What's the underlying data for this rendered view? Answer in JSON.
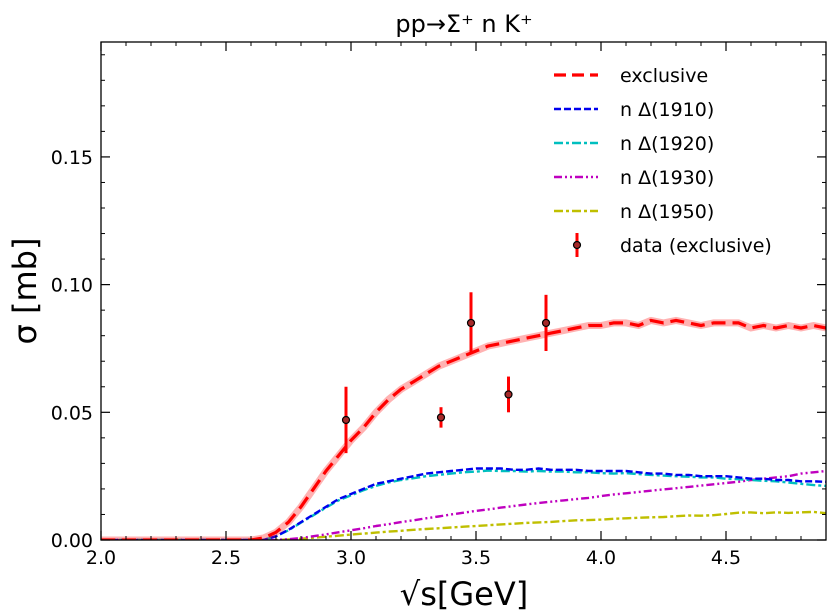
{
  "chart_data": {
    "type": "line",
    "title": "pp→Σ⁺ n K⁺",
    "xlabel": "√s[GeV]",
    "ylabel": "σ [mb]",
    "xlim": [
      2.0,
      4.9
    ],
    "ylim": [
      0.0,
      0.195
    ],
    "x_ticks": [
      2.0,
      2.5,
      3.0,
      3.5,
      4.0,
      4.5
    ],
    "x_tick_labels": [
      "2.0",
      "2.5",
      "3.0",
      "3.5",
      "4.0",
      "4.5"
    ],
    "y_ticks": [
      0.0,
      0.05,
      0.1,
      0.15
    ],
    "y_tick_labels": [
      "0.00",
      "0.05",
      "0.10",
      "0.15"
    ],
    "legend_position": "top-right",
    "series": [
      {
        "name": "exclusive",
        "color": "#ff0000",
        "style": "dashed-thick",
        "x": [
          2.0,
          2.6,
          2.65,
          2.7,
          2.75,
          2.8,
          2.85,
          2.9,
          2.95,
          3.0,
          3.05,
          3.1,
          3.15,
          3.2,
          3.25,
          3.3,
          3.35,
          3.4,
          3.45,
          3.5,
          3.55,
          3.6,
          3.65,
          3.7,
          3.75,
          3.8,
          3.85,
          3.9,
          3.95,
          4.0,
          4.05,
          4.1,
          4.15,
          4.2,
          4.25,
          4.3,
          4.35,
          4.4,
          4.45,
          4.5,
          4.55,
          4.6,
          4.65,
          4.7,
          4.75,
          4.8,
          4.85,
          4.9
        ],
        "y": [
          0.0,
          0.0,
          0.0008,
          0.003,
          0.007,
          0.013,
          0.02,
          0.027,
          0.033,
          0.039,
          0.044,
          0.05,
          0.055,
          0.059,
          0.062,
          0.065,
          0.068,
          0.07,
          0.072,
          0.074,
          0.076,
          0.077,
          0.078,
          0.079,
          0.08,
          0.081,
          0.082,
          0.083,
          0.084,
          0.084,
          0.085,
          0.085,
          0.084,
          0.086,
          0.085,
          0.086,
          0.085,
          0.084,
          0.085,
          0.085,
          0.085,
          0.083,
          0.084,
          0.083,
          0.084,
          0.083,
          0.084,
          0.083
        ]
      },
      {
        "name": "n Δ(1910)",
        "color": "#0000ee",
        "style": "dashed",
        "x": [
          2.0,
          2.65,
          2.7,
          2.75,
          2.8,
          2.85,
          2.9,
          2.95,
          3.0,
          3.05,
          3.1,
          3.15,
          3.2,
          3.25,
          3.3,
          3.35,
          3.4,
          3.45,
          3.5,
          3.55,
          3.6,
          3.65,
          3.7,
          3.75,
          3.8,
          3.85,
          3.9,
          3.95,
          4.0,
          4.05,
          4.1,
          4.15,
          4.2,
          4.25,
          4.3,
          4.35,
          4.4,
          4.45,
          4.5,
          4.55,
          4.6,
          4.65,
          4.7,
          4.75,
          4.8,
          4.85,
          4.9
        ],
        "y": [
          0.0,
          0.0,
          0.0015,
          0.004,
          0.007,
          0.01,
          0.013,
          0.016,
          0.018,
          0.02,
          0.022,
          0.023,
          0.024,
          0.025,
          0.026,
          0.0265,
          0.027,
          0.0275,
          0.028,
          0.028,
          0.028,
          0.0275,
          0.0275,
          0.028,
          0.0275,
          0.0275,
          0.0275,
          0.027,
          0.027,
          0.027,
          0.027,
          0.0265,
          0.026,
          0.026,
          0.0255,
          0.0255,
          0.025,
          0.025,
          0.025,
          0.0245,
          0.024,
          0.024,
          0.0235,
          0.0235,
          0.023,
          0.023,
          0.0228
        ]
      },
      {
        "name": "n Δ(1920)",
        "color": "#00bfbf",
        "style": "dash-dot",
        "x": [
          2.0,
          2.65,
          2.7,
          2.75,
          2.8,
          2.85,
          2.9,
          2.95,
          3.0,
          3.05,
          3.1,
          3.15,
          3.2,
          3.25,
          3.3,
          3.35,
          3.4,
          3.45,
          3.5,
          3.55,
          3.6,
          3.65,
          3.7,
          3.75,
          3.8,
          3.85,
          3.9,
          3.95,
          4.0,
          4.05,
          4.1,
          4.15,
          4.2,
          4.25,
          4.3,
          4.35,
          4.4,
          4.45,
          4.5,
          4.55,
          4.6,
          4.65,
          4.7,
          4.75,
          4.8,
          4.85,
          4.9
        ],
        "y": [
          0.0,
          0.0,
          0.0014,
          0.0038,
          0.0068,
          0.0097,
          0.0127,
          0.0155,
          0.0175,
          0.0195,
          0.0212,
          0.0225,
          0.0235,
          0.0242,
          0.025,
          0.0255,
          0.026,
          0.0265,
          0.0268,
          0.0272,
          0.027,
          0.027,
          0.0268,
          0.027,
          0.0268,
          0.0268,
          0.0265,
          0.0265,
          0.0262,
          0.026,
          0.0262,
          0.0258,
          0.0255,
          0.0252,
          0.025,
          0.0248,
          0.0245,
          0.0245,
          0.024,
          0.0238,
          0.0235,
          0.0232,
          0.023,
          0.0225,
          0.022,
          0.0215,
          0.0212
        ]
      },
      {
        "name": "n Δ(1930)",
        "color": "#bf00bf",
        "style": "dash-dot-dot",
        "x": [
          2.0,
          2.7,
          2.75,
          2.8,
          2.85,
          2.9,
          2.95,
          3.0,
          3.05,
          3.1,
          3.15,
          3.2,
          3.25,
          3.3,
          3.35,
          3.4,
          3.45,
          3.5,
          3.55,
          3.6,
          3.65,
          3.7,
          3.75,
          3.8,
          3.85,
          3.9,
          3.95,
          4.0,
          4.05,
          4.1,
          4.15,
          4.2,
          4.25,
          4.3,
          4.35,
          4.4,
          4.45,
          4.5,
          4.55,
          4.6,
          4.65,
          4.7,
          4.75,
          4.8,
          4.85,
          4.9
        ],
        "y": [
          0.0,
          0.0,
          0.0003,
          0.0008,
          0.0015,
          0.0022,
          0.003,
          0.0038,
          0.0046,
          0.0055,
          0.0062,
          0.007,
          0.0077,
          0.0085,
          0.0092,
          0.01,
          0.0107,
          0.0114,
          0.012,
          0.0127,
          0.0133,
          0.0139,
          0.0145,
          0.015,
          0.0155,
          0.016,
          0.0165,
          0.0172,
          0.0178,
          0.0183,
          0.0188,
          0.0193,
          0.0198,
          0.0203,
          0.0208,
          0.0213,
          0.0218,
          0.0223,
          0.0228,
          0.0235,
          0.024,
          0.0245,
          0.025,
          0.026,
          0.0265,
          0.027
        ]
      },
      {
        "name": "n Δ(1950)",
        "color": "#bfbf00",
        "style": "dash-dot",
        "x": [
          2.0,
          2.7,
          2.75,
          2.8,
          2.85,
          2.9,
          2.95,
          3.0,
          3.05,
          3.1,
          3.15,
          3.2,
          3.25,
          3.3,
          3.35,
          3.4,
          3.45,
          3.5,
          3.55,
          3.6,
          3.65,
          3.7,
          3.75,
          3.8,
          3.85,
          3.9,
          3.95,
          4.0,
          4.05,
          4.1,
          4.15,
          4.2,
          4.25,
          4.3,
          4.35,
          4.4,
          4.45,
          4.5,
          4.55,
          4.6,
          4.65,
          4.7,
          4.75,
          4.8,
          4.85,
          4.9
        ],
        "y": [
          0.0,
          0.0,
          0.0002,
          0.0005,
          0.0009,
          0.0013,
          0.0017,
          0.0021,
          0.0025,
          0.0029,
          0.0033,
          0.0036,
          0.004,
          0.0043,
          0.0046,
          0.0049,
          0.0052,
          0.0055,
          0.0058,
          0.0061,
          0.0064,
          0.0067,
          0.0069,
          0.0071,
          0.0074,
          0.0077,
          0.0078,
          0.008,
          0.0083,
          0.0085,
          0.0087,
          0.0089,
          0.009,
          0.0093,
          0.0096,
          0.0095,
          0.0097,
          0.0102,
          0.0107,
          0.0108,
          0.0105,
          0.0108,
          0.0106,
          0.0108,
          0.011,
          0.0105
        ]
      }
    ],
    "data_points": {
      "name": "data (exclusive)",
      "color": "#ff0000",
      "x": [
        2.98,
        3.36,
        3.48,
        3.63,
        3.78
      ],
      "y": [
        0.047,
        0.048,
        0.085,
        0.057,
        0.085
      ],
      "err": [
        0.013,
        0.004,
        0.012,
        0.007,
        0.011
      ]
    }
  }
}
